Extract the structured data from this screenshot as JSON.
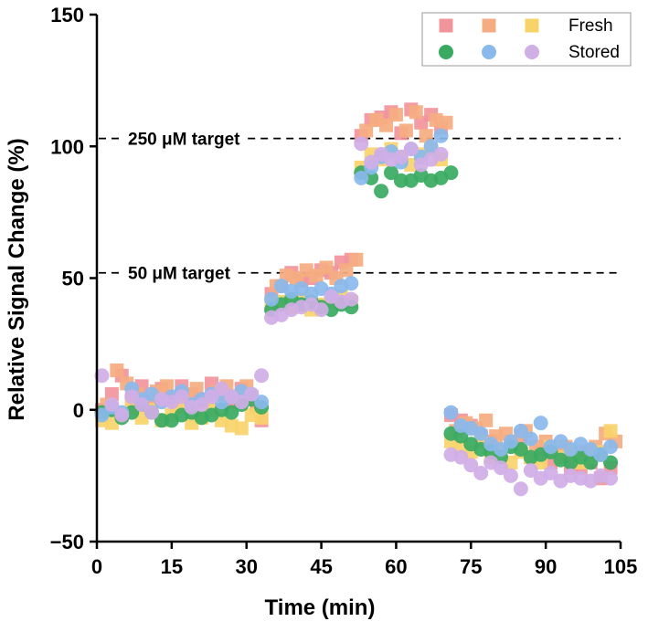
{
  "chart_data": {
    "type": "scatter",
    "title": "",
    "xlabel": "Time (min)",
    "ylabel": "Relative Signal Change (%)",
    "xlim": [
      0,
      105
    ],
    "ylim": [
      -50,
      150
    ],
    "xticks": [
      "0",
      "15",
      "30",
      "45",
      "60",
      "75",
      "90",
      "105"
    ],
    "yticks": [
      "−50",
      "0",
      "50",
      "100",
      "150"
    ],
    "grid": false,
    "legend_position": "top-right",
    "legend": {
      "fresh_label": "Fresh",
      "stored_label": "Stored"
    },
    "reference_lines": [
      {
        "label": "250 μM target",
        "y": 103
      },
      {
        "label": "50 μM target",
        "y": 52
      }
    ],
    "series": [
      {
        "group": "Fresh",
        "marker": "square",
        "color": "#f2949c",
        "points": [
          [
            1,
            0
          ],
          [
            3,
            6
          ],
          [
            5,
            13
          ],
          [
            7,
            4
          ],
          [
            9,
            9
          ],
          [
            11,
            3
          ],
          [
            13,
            8
          ],
          [
            15,
            4
          ],
          [
            17,
            9
          ],
          [
            19,
            6
          ],
          [
            21,
            3
          ],
          [
            23,
            10
          ],
          [
            25,
            6
          ],
          [
            27,
            3
          ],
          [
            29,
            8
          ],
          [
            31,
            5
          ],
          [
            33,
            -4
          ],
          [
            35,
            44
          ],
          [
            37,
            47
          ],
          [
            39,
            52
          ],
          [
            41,
            49
          ],
          [
            43,
            50
          ],
          [
            45,
            53
          ],
          [
            47,
            52
          ],
          [
            49,
            56
          ],
          [
            51,
            57
          ],
          [
            53,
            104
          ],
          [
            55,
            110
          ],
          [
            57,
            111
          ],
          [
            59,
            113
          ],
          [
            61,
            105
          ],
          [
            63,
            114
          ],
          [
            65,
            109
          ],
          [
            67,
            112
          ],
          [
            69,
            107
          ],
          [
            71,
            -2
          ],
          [
            73,
            -4
          ],
          [
            75,
            -6
          ],
          [
            77,
            -10
          ],
          [
            79,
            -12
          ],
          [
            81,
            -15
          ],
          [
            83,
            -12
          ],
          [
            85,
            -10
          ],
          [
            87,
            -18
          ],
          [
            89,
            -16
          ],
          [
            91,
            -20
          ],
          [
            93,
            -18
          ],
          [
            95,
            -22
          ],
          [
            97,
            -22
          ],
          [
            99,
            -20
          ],
          [
            101,
            -26
          ],
          [
            103,
            -22
          ]
        ]
      },
      {
        "group": "Fresh",
        "marker": "square",
        "color": "#f5ac80",
        "points": [
          [
            2,
            2
          ],
          [
            4,
            15
          ],
          [
            6,
            10
          ],
          [
            8,
            6
          ],
          [
            10,
            4
          ],
          [
            12,
            7
          ],
          [
            14,
            9
          ],
          [
            16,
            2
          ],
          [
            18,
            6
          ],
          [
            20,
            8
          ],
          [
            22,
            4
          ],
          [
            24,
            7
          ],
          [
            26,
            9
          ],
          [
            28,
            5
          ],
          [
            30,
            9
          ],
          [
            32,
            1
          ],
          [
            36,
            47
          ],
          [
            38,
            51
          ],
          [
            40,
            50
          ],
          [
            42,
            53
          ],
          [
            44,
            51
          ],
          [
            46,
            54
          ],
          [
            48,
            50
          ],
          [
            50,
            53
          ],
          [
            52,
            57
          ],
          [
            54,
            106
          ],
          [
            56,
            110
          ],
          [
            58,
            108
          ],
          [
            60,
            112
          ],
          [
            62,
            106
          ],
          [
            64,
            113
          ],
          [
            66,
            104
          ],
          [
            68,
            110
          ],
          [
            70,
            109
          ],
          [
            72,
            -8
          ],
          [
            74,
            -5
          ],
          [
            76,
            -7
          ],
          [
            78,
            -4
          ],
          [
            80,
            -10
          ],
          [
            82,
            -9
          ],
          [
            84,
            -12
          ],
          [
            86,
            -8
          ],
          [
            88,
            -14
          ],
          [
            90,
            -12
          ],
          [
            92,
            -16
          ],
          [
            94,
            -14
          ],
          [
            96,
            -18
          ],
          [
            98,
            -16
          ],
          [
            100,
            -14
          ],
          [
            102,
            -9
          ],
          [
            104,
            -12
          ]
        ]
      },
      {
        "group": "Fresh",
        "marker": "square",
        "color": "#f8d36a",
        "points": [
          [
            1,
            -4
          ],
          [
            3,
            -5
          ],
          [
            5,
            -2
          ],
          [
            7,
            1
          ],
          [
            9,
            -3
          ],
          [
            11,
            0
          ],
          [
            13,
            -4
          ],
          [
            15,
            -2
          ],
          [
            17,
            1
          ],
          [
            19,
            -5
          ],
          [
            21,
            -3
          ],
          [
            23,
            0
          ],
          [
            25,
            -4
          ],
          [
            27,
            -6
          ],
          [
            29,
            -7
          ],
          [
            31,
            -2
          ],
          [
            33,
            -3
          ],
          [
            35,
            40
          ],
          [
            37,
            41
          ],
          [
            39,
            39
          ],
          [
            41,
            42
          ],
          [
            43,
            38
          ],
          [
            45,
            40
          ],
          [
            47,
            41
          ],
          [
            49,
            43
          ],
          [
            51,
            41
          ],
          [
            53,
            92
          ],
          [
            55,
            97
          ],
          [
            57,
            95
          ],
          [
            59,
            99
          ],
          [
            61,
            96
          ],
          [
            63,
            93
          ],
          [
            65,
            97
          ],
          [
            67,
            99
          ],
          [
            69,
            95
          ],
          [
            71,
            -12
          ],
          [
            73,
            -14
          ],
          [
            75,
            -16
          ],
          [
            77,
            -12
          ],
          [
            79,
            -18
          ],
          [
            81,
            -15
          ],
          [
            83,
            -20
          ],
          [
            85,
            -16
          ],
          [
            87,
            -18
          ],
          [
            89,
            -20
          ],
          [
            91,
            -14
          ],
          [
            93,
            -18
          ],
          [
            95,
            -16
          ],
          [
            97,
            -20
          ],
          [
            99,
            -18
          ],
          [
            101,
            -16
          ],
          [
            103,
            -8
          ]
        ]
      },
      {
        "group": "Stored",
        "marker": "circle",
        "color": "#3aaa62",
        "points": [
          [
            1,
            -1
          ],
          [
            3,
            0
          ],
          [
            5,
            -3
          ],
          [
            7,
            -1
          ],
          [
            9,
            2
          ],
          [
            11,
            -1
          ],
          [
            13,
            -4
          ],
          [
            15,
            -4
          ],
          [
            17,
            -2
          ],
          [
            19,
            -1
          ],
          [
            21,
            -3
          ],
          [
            23,
            -2
          ],
          [
            25,
            0
          ],
          [
            27,
            -1
          ],
          [
            29,
            2
          ],
          [
            31,
            4
          ],
          [
            33,
            1
          ],
          [
            35,
            38
          ],
          [
            37,
            40
          ],
          [
            39,
            42
          ],
          [
            41,
            40
          ],
          [
            43,
            41
          ],
          [
            45,
            39
          ],
          [
            47,
            38
          ],
          [
            49,
            40
          ],
          [
            51,
            39
          ],
          [
            53,
            90
          ],
          [
            55,
            88
          ],
          [
            57,
            83
          ],
          [
            59,
            90
          ],
          [
            61,
            87
          ],
          [
            63,
            87
          ],
          [
            65,
            89
          ],
          [
            67,
            87
          ],
          [
            69,
            88
          ],
          [
            71,
            90
          ],
          [
            71,
            -9
          ],
          [
            73,
            -10
          ],
          [
            75,
            -13
          ],
          [
            77,
            -15
          ],
          [
            79,
            -16
          ],
          [
            81,
            -18
          ],
          [
            83,
            -14
          ],
          [
            85,
            -15
          ],
          [
            87,
            -18
          ],
          [
            89,
            -17
          ],
          [
            91,
            -16
          ],
          [
            93,
            -19
          ],
          [
            95,
            -20
          ],
          [
            97,
            -18
          ],
          [
            99,
            -20
          ],
          [
            101,
            -17
          ],
          [
            103,
            -20
          ]
        ]
      },
      {
        "group": "Stored",
        "marker": "circle",
        "color": "#8ab9ec",
        "points": [
          [
            1,
            -2
          ],
          [
            3,
            1
          ],
          [
            5,
            -1
          ],
          [
            7,
            8
          ],
          [
            9,
            4
          ],
          [
            11,
            6
          ],
          [
            13,
            3
          ],
          [
            15,
            5
          ],
          [
            17,
            7
          ],
          [
            19,
            2
          ],
          [
            21,
            4
          ],
          [
            23,
            6
          ],
          [
            25,
            3
          ],
          [
            27,
            5
          ],
          [
            29,
            7
          ],
          [
            31,
            6
          ],
          [
            33,
            3
          ],
          [
            35,
            42
          ],
          [
            37,
            47
          ],
          [
            39,
            45
          ],
          [
            41,
            46
          ],
          [
            43,
            44
          ],
          [
            45,
            46
          ],
          [
            47,
            44
          ],
          [
            49,
            47
          ],
          [
            51,
            48
          ],
          [
            53,
            88
          ],
          [
            55,
            92
          ],
          [
            57,
            96
          ],
          [
            59,
            98
          ],
          [
            61,
            94
          ],
          [
            63,
            99
          ],
          [
            65,
            96
          ],
          [
            67,
            100
          ],
          [
            69,
            104
          ],
          [
            71,
            -1
          ],
          [
            73,
            -6
          ],
          [
            75,
            -7
          ],
          [
            77,
            -9
          ],
          [
            79,
            -13
          ],
          [
            81,
            -15
          ],
          [
            83,
            -12
          ],
          [
            85,
            -8
          ],
          [
            87,
            -11
          ],
          [
            89,
            -5
          ],
          [
            91,
            -14
          ],
          [
            93,
            -12
          ],
          [
            95,
            -15
          ],
          [
            97,
            -13
          ],
          [
            99,
            -15
          ],
          [
            101,
            -17
          ],
          [
            103,
            -14
          ]
        ]
      },
      {
        "group": "Stored",
        "marker": "circle",
        "color": "#d0aee6",
        "points": [
          [
            1,
            13
          ],
          [
            3,
            2
          ],
          [
            5,
            -2
          ],
          [
            7,
            5
          ],
          [
            9,
            2
          ],
          [
            11,
            -1
          ],
          [
            13,
            4
          ],
          [
            15,
            3
          ],
          [
            17,
            5
          ],
          [
            19,
            1
          ],
          [
            21,
            2
          ],
          [
            23,
            5
          ],
          [
            25,
            8
          ],
          [
            27,
            5
          ],
          [
            29,
            3
          ],
          [
            31,
            6
          ],
          [
            33,
            13
          ],
          [
            35,
            35
          ],
          [
            37,
            36
          ],
          [
            39,
            38
          ],
          [
            41,
            39
          ],
          [
            43,
            40
          ],
          [
            45,
            38
          ],
          [
            47,
            43
          ],
          [
            49,
            41
          ],
          [
            51,
            42
          ],
          [
            53,
            101
          ],
          [
            55,
            94
          ],
          [
            57,
            97
          ],
          [
            59,
            95
          ],
          [
            61,
            96
          ],
          [
            63,
            99
          ],
          [
            65,
            93
          ],
          [
            67,
            95
          ],
          [
            69,
            97
          ],
          [
            71,
            -17
          ],
          [
            73,
            -18
          ],
          [
            75,
            -21
          ],
          [
            77,
            -24
          ],
          [
            79,
            -20
          ],
          [
            81,
            -22
          ],
          [
            83,
            -25
          ],
          [
            85,
            -30
          ],
          [
            87,
            -23
          ],
          [
            89,
            -26
          ],
          [
            91,
            -24
          ],
          [
            93,
            -27
          ],
          [
            95,
            -25
          ],
          [
            97,
            -26
          ],
          [
            99,
            -27
          ],
          [
            101,
            -25
          ],
          [
            103,
            -26
          ]
        ]
      }
    ]
  }
}
